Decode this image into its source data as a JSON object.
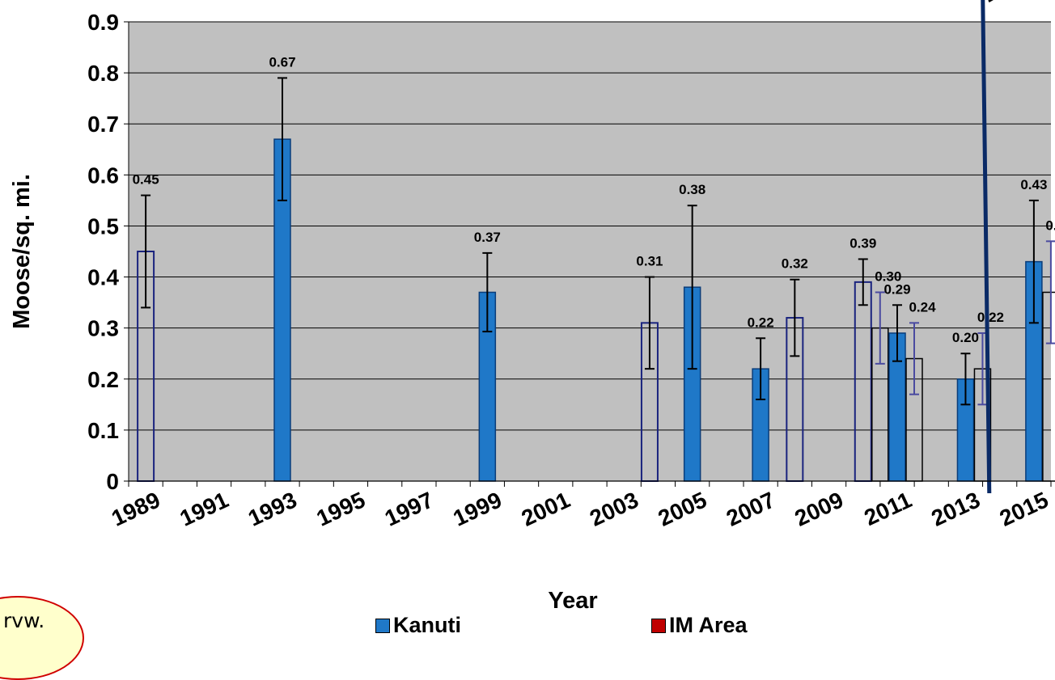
{
  "chart_data": {
    "type": "bar",
    "title": "",
    "xlabel": "Year",
    "ylabel": "Moose/sq. mi.",
    "ylim": [
      0,
      0.9
    ],
    "y_ticks": [
      "0",
      "0.1",
      "0.2",
      "0.3",
      "0.4",
      "0.5",
      "0.6",
      "0.7",
      "0.8",
      "0.9"
    ],
    "x_tick_labels": [
      "1989",
      "1991",
      "1993",
      "1995",
      "1997",
      "1999",
      "2001",
      "2003",
      "2005",
      "2007",
      "2009",
      "2011",
      "2013",
      "2015"
    ],
    "grid": true,
    "legend_position": "bottom",
    "series": [
      {
        "name": "Kanuti",
        "color": "#1f78c8"
      },
      {
        "name": "IM Area",
        "color": "#c00000"
      }
    ],
    "bars": [
      {
        "year": 1989,
        "value": 0.45,
        "label": "0.45",
        "err_low": 0.34,
        "err_high": 0.56,
        "style": "outline-navy",
        "slot": 0
      },
      {
        "year": 1993,
        "value": 0.67,
        "label": "0.67",
        "err_low": 0.55,
        "err_high": 0.79,
        "style": "filled",
        "slot": 0
      },
      {
        "year": 1999,
        "value": 0.37,
        "label": "0.37",
        "err_low": 0.293,
        "err_high": 0.447,
        "style": "filled",
        "slot": 0
      },
      {
        "year": 2004,
        "value": 0.31,
        "label": "0.31",
        "err_low": 0.22,
        "err_high": 0.4,
        "style": "outline-navy",
        "slot": -0.5
      },
      {
        "year": 2005,
        "value": 0.38,
        "label": "0.38",
        "err_low": 0.22,
        "err_high": 0.54,
        "style": "filled",
        "slot": 0
      },
      {
        "year": 2007,
        "value": 0.22,
        "label": "0.22",
        "err_low": 0.16,
        "err_high": 0.28,
        "style": "filled",
        "slot": 0
      },
      {
        "year": 2008,
        "value": 0.32,
        "label": "0.32",
        "err_low": 0.245,
        "err_high": 0.395,
        "style": "outline-navy",
        "slot": 0
      },
      {
        "year": 2010,
        "value": 0.39,
        "label": "0.39",
        "err_low": 0.345,
        "err_high": 0.435,
        "style": "outline-navy",
        "slot": 0
      },
      {
        "year": 2010,
        "value": 0.3,
        "label": "0.30",
        "err_low": 0.23,
        "err_high": 0.37,
        "style": "outline-black",
        "slot": 1,
        "err_color": "#4a4aa0"
      },
      {
        "year": 2011,
        "value": 0.29,
        "label": "0.29",
        "err_low": 0.235,
        "err_high": 0.345,
        "style": "filled",
        "slot": 0
      },
      {
        "year": 2011,
        "value": 0.24,
        "label": "0.24",
        "err_low": 0.17,
        "err_high": 0.31,
        "style": "outline-black",
        "slot": 1,
        "err_color": "#4a4aa0"
      },
      {
        "year": 2013,
        "value": 0.2,
        "label": "0.20",
        "err_low": 0.15,
        "err_high": 0.25,
        "style": "filled",
        "slot": 0
      },
      {
        "year": 2013,
        "value": 0.22,
        "label": "0.22",
        "err_low": 0.15,
        "err_high": 0.29,
        "style": "outline-black",
        "slot": 1,
        "err_color": "#4a4aa0"
      },
      {
        "year": 2015,
        "value": 0.43,
        "label": "0.43",
        "err_low": 0.31,
        "err_high": 0.55,
        "style": "filled",
        "slot": 0
      },
      {
        "year": 2015,
        "value": 0.37,
        "label": "0.37",
        "err_low": 0.27,
        "err_high": 0.47,
        "style": "outline-black",
        "slot": 1,
        "err_color": "#4a4aa0"
      }
    ],
    "divider_year": 2013.6,
    "colors": {
      "plot_bg": "#c0c0c0",
      "outline_navy": "#1a237e",
      "divider": "#0a2a66"
    }
  },
  "legend": {
    "kanuti": "Kanuti",
    "im_area": "IM Area"
  },
  "badge_text": "rvw.",
  "corner_text": "20"
}
